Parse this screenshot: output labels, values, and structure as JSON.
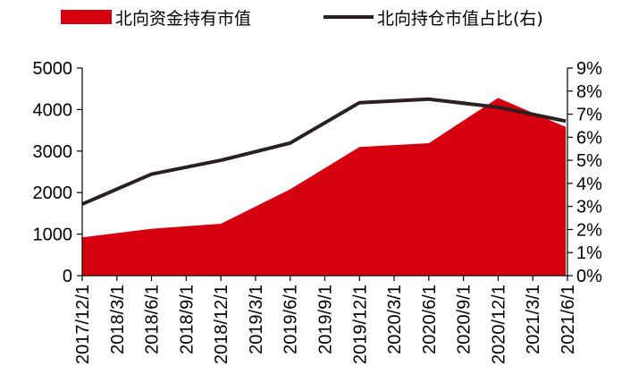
{
  "chart_data": {
    "type": "area+line",
    "legend": {
      "placement": "top",
      "entries": [
        {
          "label": "北向资金持有市值",
          "kind": "area",
          "color": "#d7000f"
        },
        {
          "label": "北向持仓市值占比(右)",
          "kind": "line",
          "color": "#2b2020"
        }
      ]
    },
    "categories": [
      "2017/12/1",
      "2018/3/1",
      "2018/6/1",
      "2018/9/1",
      "2018/12/1",
      "2019/3/1",
      "2019/6/1",
      "2019/9/1",
      "2019/12/1",
      "2020/3/1",
      "2020/6/1",
      "2020/9/1",
      "2020/12/1",
      "2021/3/1",
      "2021/6/1"
    ],
    "series": [
      {
        "name": "北向资金持有市值",
        "type": "area",
        "axis": "left",
        "color": "#d7000f",
        "x": [
          0,
          2,
          4,
          6,
          8,
          10,
          12,
          13.95
        ],
        "values": [
          920,
          1130,
          1250,
          2080,
          3100,
          3190,
          4280,
          3580
        ]
      },
      {
        "name": "北向持仓市值占比(右)",
        "type": "line",
        "axis": "right",
        "color": "#2b2020",
        "x": [
          0,
          2,
          4,
          6,
          8,
          10,
          12,
          13.95
        ],
        "values": [
          3.1,
          4.4,
          5.0,
          5.75,
          7.5,
          7.65,
          7.3,
          6.7
        ]
      }
    ],
    "y_left": {
      "min": 0,
      "max": 5000,
      "ticks": [
        "0",
        "1000",
        "2000",
        "3000",
        "4000",
        "5000"
      ]
    },
    "y_right": {
      "min": 0,
      "max": 9,
      "ticks": [
        "0%",
        "1%",
        "2%",
        "3%",
        "4%",
        "5%",
        "6%",
        "7%",
        "8%",
        "9%"
      ]
    },
    "grid": false
  }
}
